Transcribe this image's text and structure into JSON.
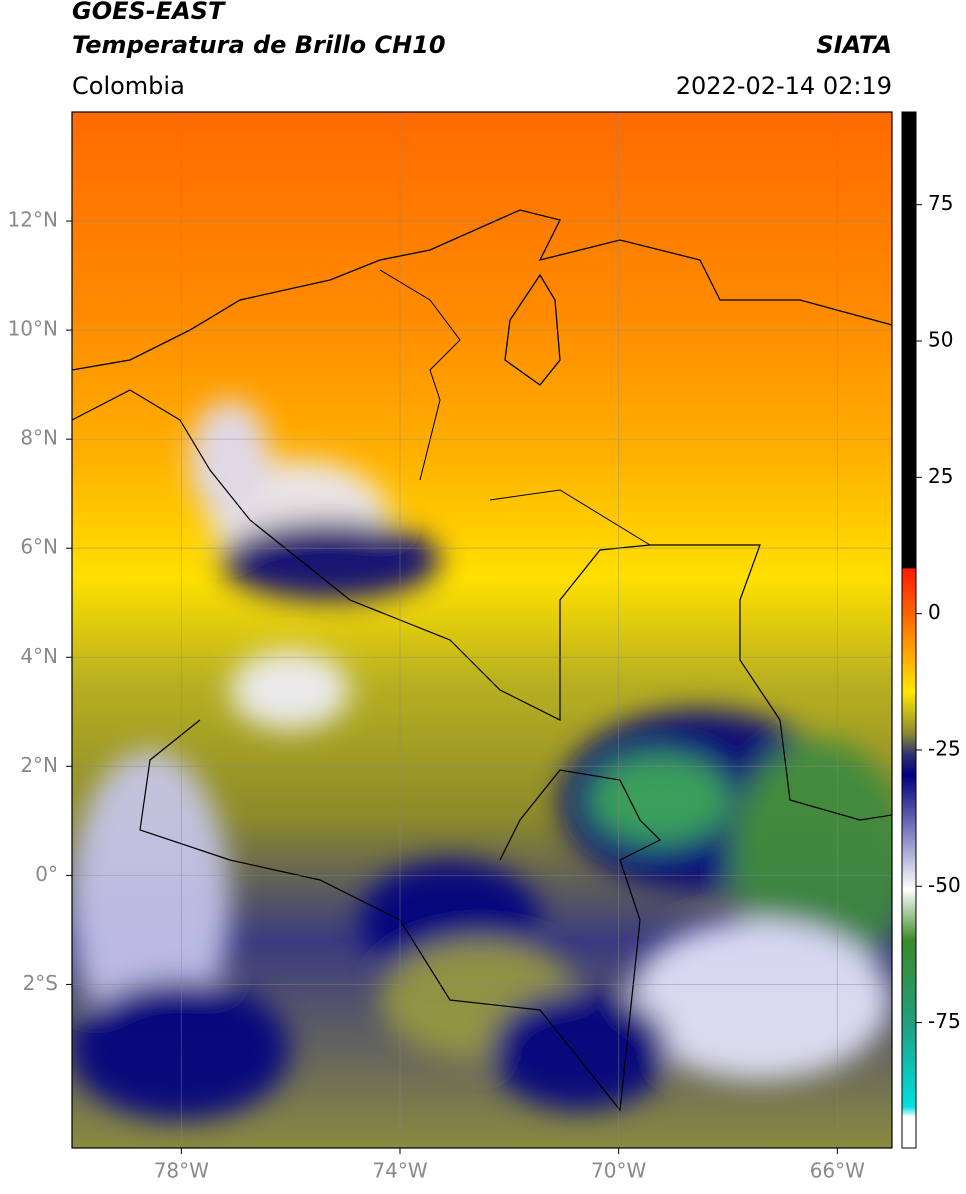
{
  "header": {
    "title": "GOES-EAST",
    "subtitle": "Temperatura de Brillo CH10",
    "source": "SIATA",
    "region": "Colombia",
    "datetime": "2022-02-14 02:19"
  },
  "map": {
    "xlim": [
      -80,
      -65
    ],
    "ylim": [
      -5,
      14
    ],
    "xticks": [
      {
        "value": -78,
        "label": "78°W"
      },
      {
        "value": -74,
        "label": "74°W"
      },
      {
        "value": -70,
        "label": "70°W"
      },
      {
        "value": -66,
        "label": "66°W"
      }
    ],
    "yticks": [
      {
        "value": 12,
        "label": "12°N"
      },
      {
        "value": 10,
        "label": "10°N"
      },
      {
        "value": 8,
        "label": "8°N"
      },
      {
        "value": 6,
        "label": "6°N"
      },
      {
        "value": 4,
        "label": "4°N"
      },
      {
        "value": 2,
        "label": "2°N"
      },
      {
        "value": 0,
        "label": "0°"
      },
      {
        "value": -2,
        "label": "2°S"
      }
    ],
    "grid": true
  },
  "colorbar": {
    "lim": [
      -98,
      92
    ],
    "ticks": [
      75,
      50,
      25,
      0,
      -25,
      -50,
      -75
    ]
  }
}
